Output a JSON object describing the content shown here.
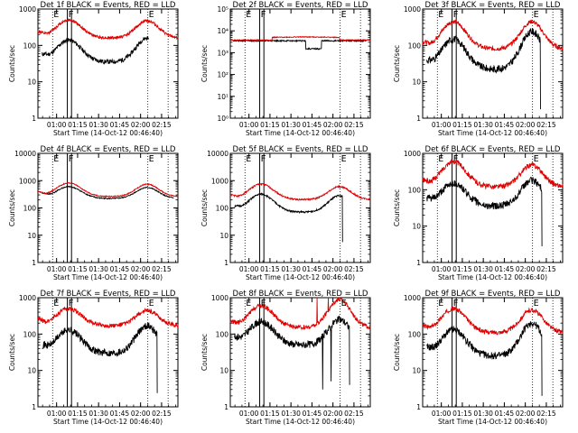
{
  "figure": {
    "start_time_label": "Start Time (14-Oct-12 00:46:40)",
    "x_ticks": [
      "01:00",
      "01:15",
      "01:30",
      "01:45",
      "02:00",
      "02:15"
    ],
    "colors": {
      "events": "#000000",
      "lld": "#e00000"
    }
  },
  "chart_data": [
    {
      "type": "line",
      "title": "Det 1f BLACK = Events, RED = LLD",
      "ylabel": "Counts/sec",
      "ylog": true,
      "ytick_style": "plain",
      "ylim": [
        1,
        1000
      ],
      "y_ticks": [
        1,
        10,
        100,
        1000
      ],
      "x_unit": "minutes after 00:46:40",
      "xlim": [
        0,
        100
      ],
      "x_tick_values": [
        13.33,
        28.33,
        43.33,
        58.33,
        73.33,
        88.33
      ],
      "series": [
        {
          "color_key": "events",
          "shape": "hump",
          "base": 35,
          "peak1": 140,
          "peak2": 160,
          "x0": 3,
          "x1": 79,
          "noise": 0.06,
          "seed": 11
        },
        {
          "color_key": "lld",
          "shape": "hump",
          "base": 160,
          "peak1": 500,
          "peak2": 480,
          "x0": 0,
          "x1": 100,
          "noise": 0.04,
          "seed": 12
        }
      ],
      "vlines_dotted": [
        10.5,
        78.5,
        93
      ],
      "vlines_solid": [
        21,
        24
      ],
      "markers": [
        "E",
        "F",
        "E"
      ]
    },
    {
      "type": "line",
      "title": "Det 2f BLACK = Events, RED = LLD",
      "ylabel": "Counts/sec",
      "ylog": true,
      "ytick_style": "power",
      "ylim": [
        1,
        100000
      ],
      "y_ticks": [
        1,
        10,
        100,
        1000,
        10000,
        100000
      ],
      "y_tick_labels": [
        "10⁰",
        "10¹",
        "10²",
        "10³",
        "10⁴",
        "10⁵"
      ],
      "x_unit": "minutes after 00:46:40",
      "xlim": [
        0,
        100
      ],
      "x_tick_values": [
        13.33,
        28.33,
        43.33,
        58.33,
        73.33,
        88.33
      ],
      "series": [
        {
          "color_key": "events",
          "shape": "flat",
          "level": 3500,
          "dip": [
            54,
            65,
            1500
          ],
          "x0": 2,
          "x1": 97,
          "noise": 0.03,
          "seed": 21
        },
        {
          "color_key": "lld",
          "shape": "flat",
          "level": 3800,
          "bump": [
            30,
            78,
            5000
          ],
          "x0": 0,
          "x1": 100,
          "noise": 0.02,
          "seed": 22
        }
      ],
      "vlines_dotted": [
        10.5,
        78.5,
        93
      ],
      "vlines_solid": [
        21,
        24
      ],
      "markers": [
        "E",
        "F",
        "E"
      ]
    },
    {
      "type": "line",
      "title": "Det 3f BLACK = Events, RED = LLD",
      "ylabel": "Counts/sec",
      "ylog": true,
      "ytick_style": "plain",
      "ylim": [
        1,
        1000
      ],
      "y_ticks": [
        1,
        10,
        100,
        1000
      ],
      "x_unit": "minutes after 00:46:40",
      "xlim": [
        0,
        100
      ],
      "x_tick_values": [
        13.33,
        28.33,
        43.33,
        58.33,
        73.33,
        88.33
      ],
      "series": [
        {
          "color_key": "events",
          "shape": "hump",
          "base": 22,
          "peak1": 150,
          "peak2": 240,
          "x0": 3,
          "x1": 84,
          "noise": 0.1,
          "seed": 31,
          "drop": 84
        },
        {
          "color_key": "lld",
          "shape": "hump",
          "base": 80,
          "peak1": 450,
          "peak2": 450,
          "x0": 0,
          "x1": 100,
          "noise": 0.06,
          "seed": 32
        }
      ],
      "vlines_dotted": [
        10.5,
        78.5,
        93
      ],
      "vlines_solid": [
        21,
        24
      ],
      "markers": [
        "E",
        "F",
        "E"
      ]
    },
    {
      "type": "line",
      "title": "Det 4f BLACK = Events, RED = LLD",
      "ylabel": "Counts/sec",
      "ylog": true,
      "ytick_style": "plain",
      "ylim": [
        1,
        10000
      ],
      "y_ticks": [
        1,
        10,
        100,
        1000,
        10000
      ],
      "x_unit": "minutes after 00:46:40",
      "xlim": [
        0,
        100
      ],
      "x_tick_values": [
        13.33,
        28.33,
        43.33,
        58.33,
        73.33,
        88.33
      ],
      "series": [
        {
          "color_key": "events",
          "shape": "hump",
          "base": 220,
          "peak1": 600,
          "peak2": 560,
          "x0": 3,
          "x1": 97,
          "noise": 0.02,
          "seed": 41
        },
        {
          "color_key": "lld",
          "shape": "hump",
          "base": 260,
          "peak1": 820,
          "peak2": 740,
          "x0": 0,
          "x1": 100,
          "noise": 0.02,
          "seed": 42
        }
      ],
      "vlines_dotted": [
        10.5,
        78.5,
        93
      ],
      "vlines_solid": [
        21,
        24
      ],
      "markers": [
        "E",
        "F",
        "E"
      ]
    },
    {
      "type": "line",
      "title": "Det 5f BLACK = Events, RED = LLD",
      "ylabel": "Counts/sec",
      "ylog": true,
      "ytick_style": "plain",
      "ylim": [
        1,
        10000
      ],
      "y_ticks": [
        1,
        10,
        100,
        1000,
        10000
      ],
      "x_unit": "minutes after 00:46:40",
      "xlim": [
        0,
        100
      ],
      "x_tick_values": [
        13.33,
        28.33,
        43.33,
        58.33,
        73.33,
        88.33
      ],
      "series": [
        {
          "color_key": "events",
          "shape": "hump",
          "base": 70,
          "peak1": 320,
          "peak2": 280,
          "x0": 3,
          "x1": 80,
          "noise": 0.03,
          "seed": 51,
          "drop": 80
        },
        {
          "color_key": "lld",
          "shape": "hump",
          "base": 200,
          "peak1": 750,
          "peak2": 600,
          "x0": 0,
          "x1": 100,
          "noise": 0.03,
          "seed": 52
        }
      ],
      "vlines_dotted": [
        10.5,
        78.5,
        93
      ],
      "vlines_solid": [
        21,
        24
      ],
      "markers": [
        "E",
        "F",
        "E"
      ]
    },
    {
      "type": "line",
      "title": "Det 6f BLACK = Events, RED = LLD",
      "ylabel": "Counts/sec",
      "ylog": true,
      "ytick_style": "plain",
      "ylim": [
        1,
        1000
      ],
      "y_ticks": [
        1,
        10,
        100,
        1000
      ],
      "x_unit": "minutes after 00:46:40",
      "xlim": [
        0,
        100
      ],
      "x_tick_values": [
        13.33,
        28.33,
        43.33,
        58.33,
        73.33,
        88.33
      ],
      "series": [
        {
          "color_key": "events",
          "shape": "hump",
          "base": 35,
          "peak1": 150,
          "peak2": 180,
          "x0": 3,
          "x1": 85,
          "noise": 0.1,
          "seed": 61,
          "drop": 85
        },
        {
          "color_key": "lld",
          "shape": "hump",
          "base": 120,
          "peak1": 600,
          "peak2": 480,
          "x0": 0,
          "x1": 100,
          "noise": 0.07,
          "seed": 62
        }
      ],
      "vlines_dotted": [
        10.5,
        78.5,
        93
      ],
      "vlines_solid": [
        21,
        24
      ],
      "markers": [
        "E",
        "F",
        "E"
      ]
    },
    {
      "type": "line",
      "title": "Det 7f BLACK = Events, RED = LLD",
      "ylabel": "Counts/sec",
      "ylog": true,
      "ytick_style": "plain",
      "ylim": [
        1,
        1000
      ],
      "y_ticks": [
        1,
        10,
        100,
        1000
      ],
      "x_unit": "minutes after 00:46:40",
      "xlim": [
        0,
        100
      ],
      "x_tick_values": [
        13.33,
        28.33,
        43.33,
        58.33,
        73.33,
        88.33
      ],
      "series": [
        {
          "color_key": "events",
          "shape": "hump",
          "base": 30,
          "peak1": 130,
          "peak2": 170,
          "x0": 3,
          "x1": 85,
          "noise": 0.1,
          "seed": 71,
          "drop": 85
        },
        {
          "color_key": "lld",
          "shape": "hump",
          "base": 170,
          "peak1": 500,
          "peak2": 440,
          "x0": 0,
          "x1": 100,
          "noise": 0.06,
          "seed": 72
        }
      ],
      "vlines_dotted": [
        10.5,
        78.5,
        93
      ],
      "vlines_solid": [
        21,
        24
      ],
      "markers": [
        "E",
        "F",
        "E"
      ]
    },
    {
      "type": "line",
      "title": "Det 8f BLACK = Events, RED = LLD",
      "ylabel": "Counts/sec",
      "ylog": true,
      "ytick_style": "plain",
      "ylim": [
        1,
        1000
      ],
      "y_ticks": [
        1,
        10,
        100,
        1000
      ],
      "x_unit": "minutes after 00:46:40",
      "xlim": [
        0,
        100
      ],
      "x_tick_values": [
        13.33,
        28.33,
        43.33,
        58.33,
        73.33,
        88.33
      ],
      "series": [
        {
          "color_key": "events",
          "shape": "hump",
          "base": 50,
          "peak1": 220,
          "peak2": 250,
          "x0": 3,
          "x1": 85,
          "noise": 0.1,
          "seed": 81,
          "drop": 85,
          "spikes": [
            [
              66,
              3
            ],
            [
              72,
              5
            ]
          ]
        },
        {
          "color_key": "lld",
          "shape": "hump",
          "base": 150,
          "peak1": 600,
          "peak2": 900,
          "x0": 0,
          "x1": 100,
          "noise": 0.06,
          "seed": 82,
          "spikes": [
            [
              62,
              1000
            ],
            [
              70,
              1000
            ]
          ]
        }
      ],
      "vlines_dotted": [
        10.5,
        78.5,
        93
      ],
      "vlines_solid": [
        21,
        24
      ],
      "markers": [
        "E",
        "F",
        "E"
      ]
    },
    {
      "type": "line",
      "title": "Det 9f BLACK = Events, RED = LLD",
      "ylabel": "Counts/sec",
      "ylog": true,
      "ytick_style": "plain",
      "ylim": [
        1,
        1000
      ],
      "y_ticks": [
        1,
        10,
        100,
        1000
      ],
      "x_unit": "minutes after 00:46:40",
      "xlim": [
        0,
        100
      ],
      "x_tick_values": [
        13.33,
        28.33,
        43.33,
        58.33,
        73.33,
        88.33
      ],
      "series": [
        {
          "color_key": "events",
          "shape": "hump",
          "base": 25,
          "peak1": 130,
          "peak2": 200,
          "x0": 3,
          "x1": 85,
          "noise": 0.1,
          "seed": 91,
          "drop": 85
        },
        {
          "color_key": "lld",
          "shape": "hump",
          "base": 110,
          "peak1": 500,
          "peak2": 460,
          "x0": 0,
          "x1": 100,
          "noise": 0.06,
          "seed": 92
        }
      ],
      "vlines_dotted": [
        10.5,
        78.5,
        93
      ],
      "vlines_solid": [
        21,
        24
      ],
      "markers": [
        "E",
        "F",
        "E"
      ]
    }
  ]
}
